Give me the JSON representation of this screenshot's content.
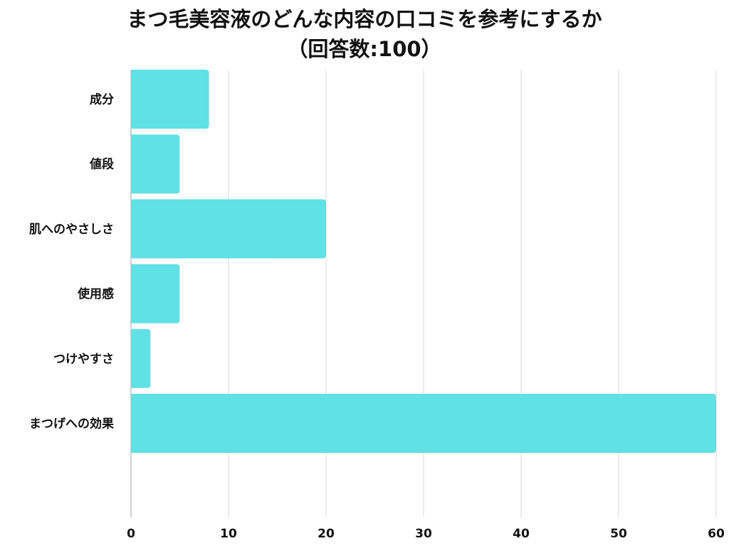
{
  "chart_data": {
    "type": "bar",
    "orientation": "horizontal",
    "title": "まつ毛美容液のどんな内容の口コミを参考にするか",
    "subtitle": "（回答数:100）",
    "categories": [
      "成分",
      "値段",
      "肌へのやさしさ",
      "使用感",
      "つけやすさ",
      "まつげへの効果"
    ],
    "values": [
      8,
      5,
      20,
      5,
      2,
      60
    ],
    "xlim": [
      0,
      60
    ],
    "xticks": [
      0,
      10,
      20,
      30,
      40,
      50,
      60
    ],
    "grid": true,
    "legend": false,
    "bar_color": "#5fe1e5",
    "grid_color": "#d9d9d9",
    "axis_color": "#bfbfbf",
    "text_color": "#111111"
  }
}
